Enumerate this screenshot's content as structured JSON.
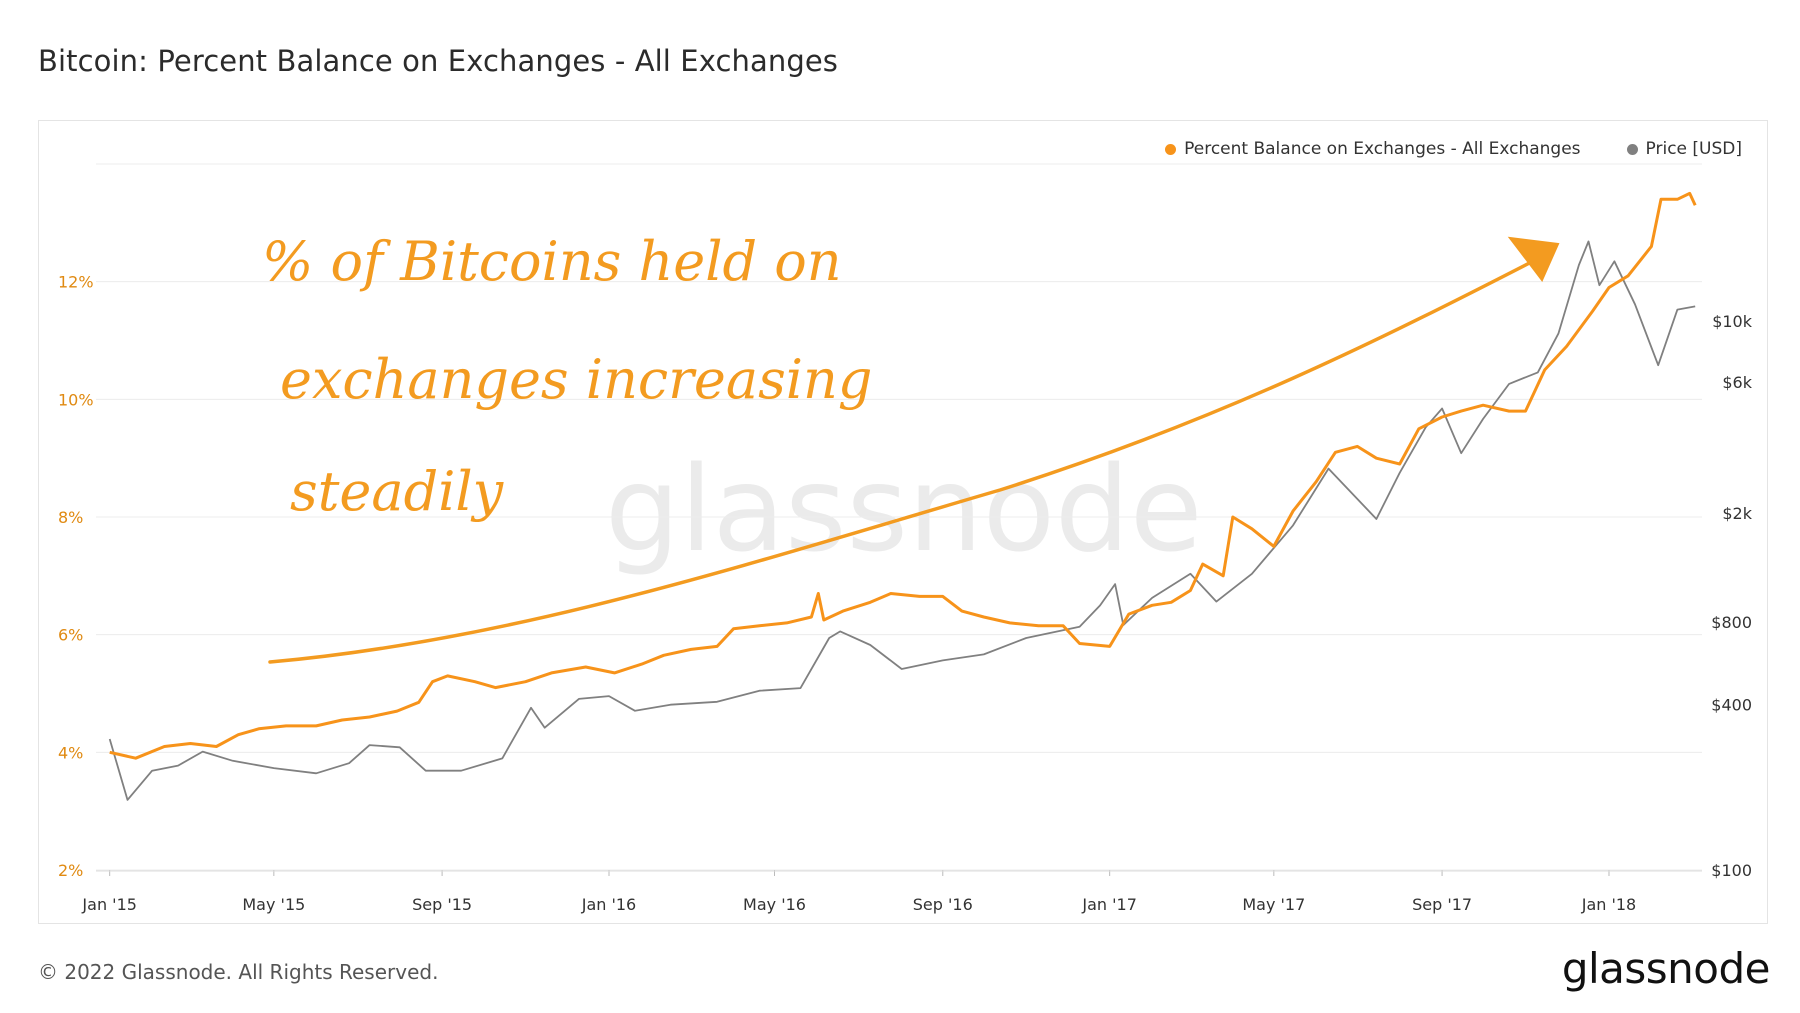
{
  "title": "Bitcoin: Percent Balance on Exchanges - All Exchanges",
  "footer": "© 2022 Glassnode. All Rights Reserved.",
  "brand": "glassnode",
  "watermark": "glassnode",
  "legend": [
    {
      "label": "Percent Balance on Exchanges - All Exchanges",
      "color": "#f7931a"
    },
    {
      "label": "Price [USD]",
      "color": "#808080"
    }
  ],
  "annotation": {
    "lines": [
      "% of Bitcoins held on",
      "exchanges increasing",
      "steadily"
    ],
    "color": "#f39b20"
  },
  "chart_data": {
    "type": "line",
    "x_ticks": [
      "Jan '15",
      "May '15",
      "Sep '15",
      "Jan '16",
      "May '16",
      "Sep '16",
      "Jan '17",
      "May '17",
      "Sep '17",
      "Jan '18"
    ],
    "y_left_ticks": [
      "2%",
      "4%",
      "6%",
      "8%",
      "10%",
      "12%"
    ],
    "y_right_ticks": [
      "$100",
      "$400",
      "$800",
      "$2k",
      "$6k",
      "$10k"
    ],
    "y_left_range": [
      2,
      14
    ],
    "y_right_scale": "log",
    "grid": true,
    "legend_position": "top-right",
    "series": [
      {
        "name": "Percent Balance on Exchanges - All Exchanges",
        "color": "#f7931a",
        "axis": "left",
        "points": [
          [
            "2015-01-01",
            4.0
          ],
          [
            "2015-01-20",
            3.9
          ],
          [
            "2015-02-10",
            4.1
          ],
          [
            "2015-03-01",
            4.15
          ],
          [
            "2015-03-20",
            4.1
          ],
          [
            "2015-04-05",
            4.3
          ],
          [
            "2015-04-20",
            4.4
          ],
          [
            "2015-05-10",
            4.45
          ],
          [
            "2015-06-01",
            4.45
          ],
          [
            "2015-06-20",
            4.55
          ],
          [
            "2015-07-10",
            4.6
          ],
          [
            "2015-07-30",
            4.7
          ],
          [
            "2015-08-15",
            4.85
          ],
          [
            "2015-08-25",
            5.2
          ],
          [
            "2015-09-05",
            5.3
          ],
          [
            "2015-09-25",
            5.2
          ],
          [
            "2015-10-10",
            5.1
          ],
          [
            "2015-11-01",
            5.2
          ],
          [
            "2015-11-20",
            5.35
          ],
          [
            "2015-12-15",
            5.45
          ],
          [
            "2016-01-05",
            5.35
          ],
          [
            "2016-01-25",
            5.5
          ],
          [
            "2016-02-10",
            5.65
          ],
          [
            "2016-03-01",
            5.75
          ],
          [
            "2016-03-20",
            5.8
          ],
          [
            "2016-04-01",
            6.1
          ],
          [
            "2016-04-20",
            6.15
          ],
          [
            "2016-05-10",
            6.2
          ],
          [
            "2016-05-28",
            6.3
          ],
          [
            "2016-06-02",
            6.7
          ],
          [
            "2016-06-06",
            6.25
          ],
          [
            "2016-06-20",
            6.4
          ],
          [
            "2016-07-10",
            6.55
          ],
          [
            "2016-07-25",
            6.7
          ],
          [
            "2016-08-15",
            6.65
          ],
          [
            "2016-09-01",
            6.65
          ],
          [
            "2016-09-15",
            6.4
          ],
          [
            "2016-10-01",
            6.3
          ],
          [
            "2016-10-20",
            6.2
          ],
          [
            "2016-11-10",
            6.15
          ],
          [
            "2016-11-28",
            6.15
          ],
          [
            "2016-12-10",
            5.85
          ],
          [
            "2017-01-01",
            5.8
          ],
          [
            "2017-01-15",
            6.35
          ],
          [
            "2017-02-01",
            6.5
          ],
          [
            "2017-02-15",
            6.55
          ],
          [
            "2017-03-01",
            6.75
          ],
          [
            "2017-03-10",
            7.2
          ],
          [
            "2017-03-25",
            7.0
          ],
          [
            "2017-04-01",
            8.0
          ],
          [
            "2017-04-15",
            7.8
          ],
          [
            "2017-05-01",
            7.5
          ],
          [
            "2017-05-15",
            8.1
          ],
          [
            "2017-06-01",
            8.6
          ],
          [
            "2017-06-15",
            9.1
          ],
          [
            "2017-07-01",
            9.2
          ],
          [
            "2017-07-15",
            9.0
          ],
          [
            "2017-08-01",
            8.9
          ],
          [
            "2017-08-15",
            9.5
          ],
          [
            "2017-09-01",
            9.7
          ],
          [
            "2017-09-15",
            9.8
          ],
          [
            "2017-10-01",
            9.9
          ],
          [
            "2017-10-20",
            9.8
          ],
          [
            "2017-11-01",
            9.8
          ],
          [
            "2017-11-15",
            10.5
          ],
          [
            "2017-12-01",
            10.9
          ],
          [
            "2017-12-20",
            11.5
          ],
          [
            "2018-01-01",
            11.9
          ],
          [
            "2018-01-15",
            12.1
          ],
          [
            "2018-02-01",
            12.6
          ],
          [
            "2018-02-08",
            13.4
          ],
          [
            "2018-02-20",
            13.4
          ],
          [
            "2018-03-01",
            13.5
          ],
          [
            "2018-03-05",
            13.3
          ]
        ]
      },
      {
        "name": "Price [USD]",
        "color": "#808080",
        "axis": "right",
        "points": [
          [
            "2015-01-01",
            300
          ],
          [
            "2015-01-14",
            180
          ],
          [
            "2015-02-01",
            230
          ],
          [
            "2015-02-20",
            240
          ],
          [
            "2015-03-10",
            270
          ],
          [
            "2015-04-01",
            250
          ],
          [
            "2015-05-01",
            235
          ],
          [
            "2015-06-01",
            225
          ],
          [
            "2015-06-25",
            245
          ],
          [
            "2015-07-10",
            285
          ],
          [
            "2015-08-01",
            280
          ],
          [
            "2015-08-20",
            230
          ],
          [
            "2015-09-15",
            230
          ],
          [
            "2015-10-15",
            255
          ],
          [
            "2015-11-05",
            390
          ],
          [
            "2015-11-15",
            330
          ],
          [
            "2015-12-10",
            420
          ],
          [
            "2016-01-01",
            430
          ],
          [
            "2016-01-20",
            380
          ],
          [
            "2016-02-15",
            400
          ],
          [
            "2016-03-20",
            410
          ],
          [
            "2016-04-20",
            450
          ],
          [
            "2016-05-20",
            460
          ],
          [
            "2016-06-10",
            700
          ],
          [
            "2016-06-18",
            740
          ],
          [
            "2016-07-10",
            660
          ],
          [
            "2016-08-02",
            540
          ],
          [
            "2016-09-01",
            580
          ],
          [
            "2016-10-01",
            610
          ],
          [
            "2016-11-01",
            700
          ],
          [
            "2016-12-10",
            770
          ],
          [
            "2016-12-25",
            920
          ],
          [
            "2017-01-05",
            1100
          ],
          [
            "2017-01-11",
            780
          ],
          [
            "2017-02-01",
            980
          ],
          [
            "2017-03-01",
            1200
          ],
          [
            "2017-03-20",
            950
          ],
          [
            "2017-04-15",
            1200
          ],
          [
            "2017-05-15",
            1800
          ],
          [
            "2017-06-10",
            2900
          ],
          [
            "2017-07-15",
            1900
          ],
          [
            "2017-08-01",
            2800
          ],
          [
            "2017-08-20",
            4100
          ],
          [
            "2017-09-01",
            4800
          ],
          [
            "2017-09-15",
            3300
          ],
          [
            "2017-10-01",
            4400
          ],
          [
            "2017-10-20",
            5900
          ],
          [
            "2017-11-10",
            6500
          ],
          [
            "2017-11-25",
            9000
          ],
          [
            "2017-12-10",
            16000
          ],
          [
            "2017-12-17",
            19500
          ],
          [
            "2017-12-25",
            13500
          ],
          [
            "2018-01-05",
            16500
          ],
          [
            "2018-01-20",
            11500
          ],
          [
            "2018-02-06",
            6900
          ],
          [
            "2018-02-20",
            11000
          ],
          [
            "2018-03-05",
            11300
          ]
        ]
      }
    ]
  }
}
